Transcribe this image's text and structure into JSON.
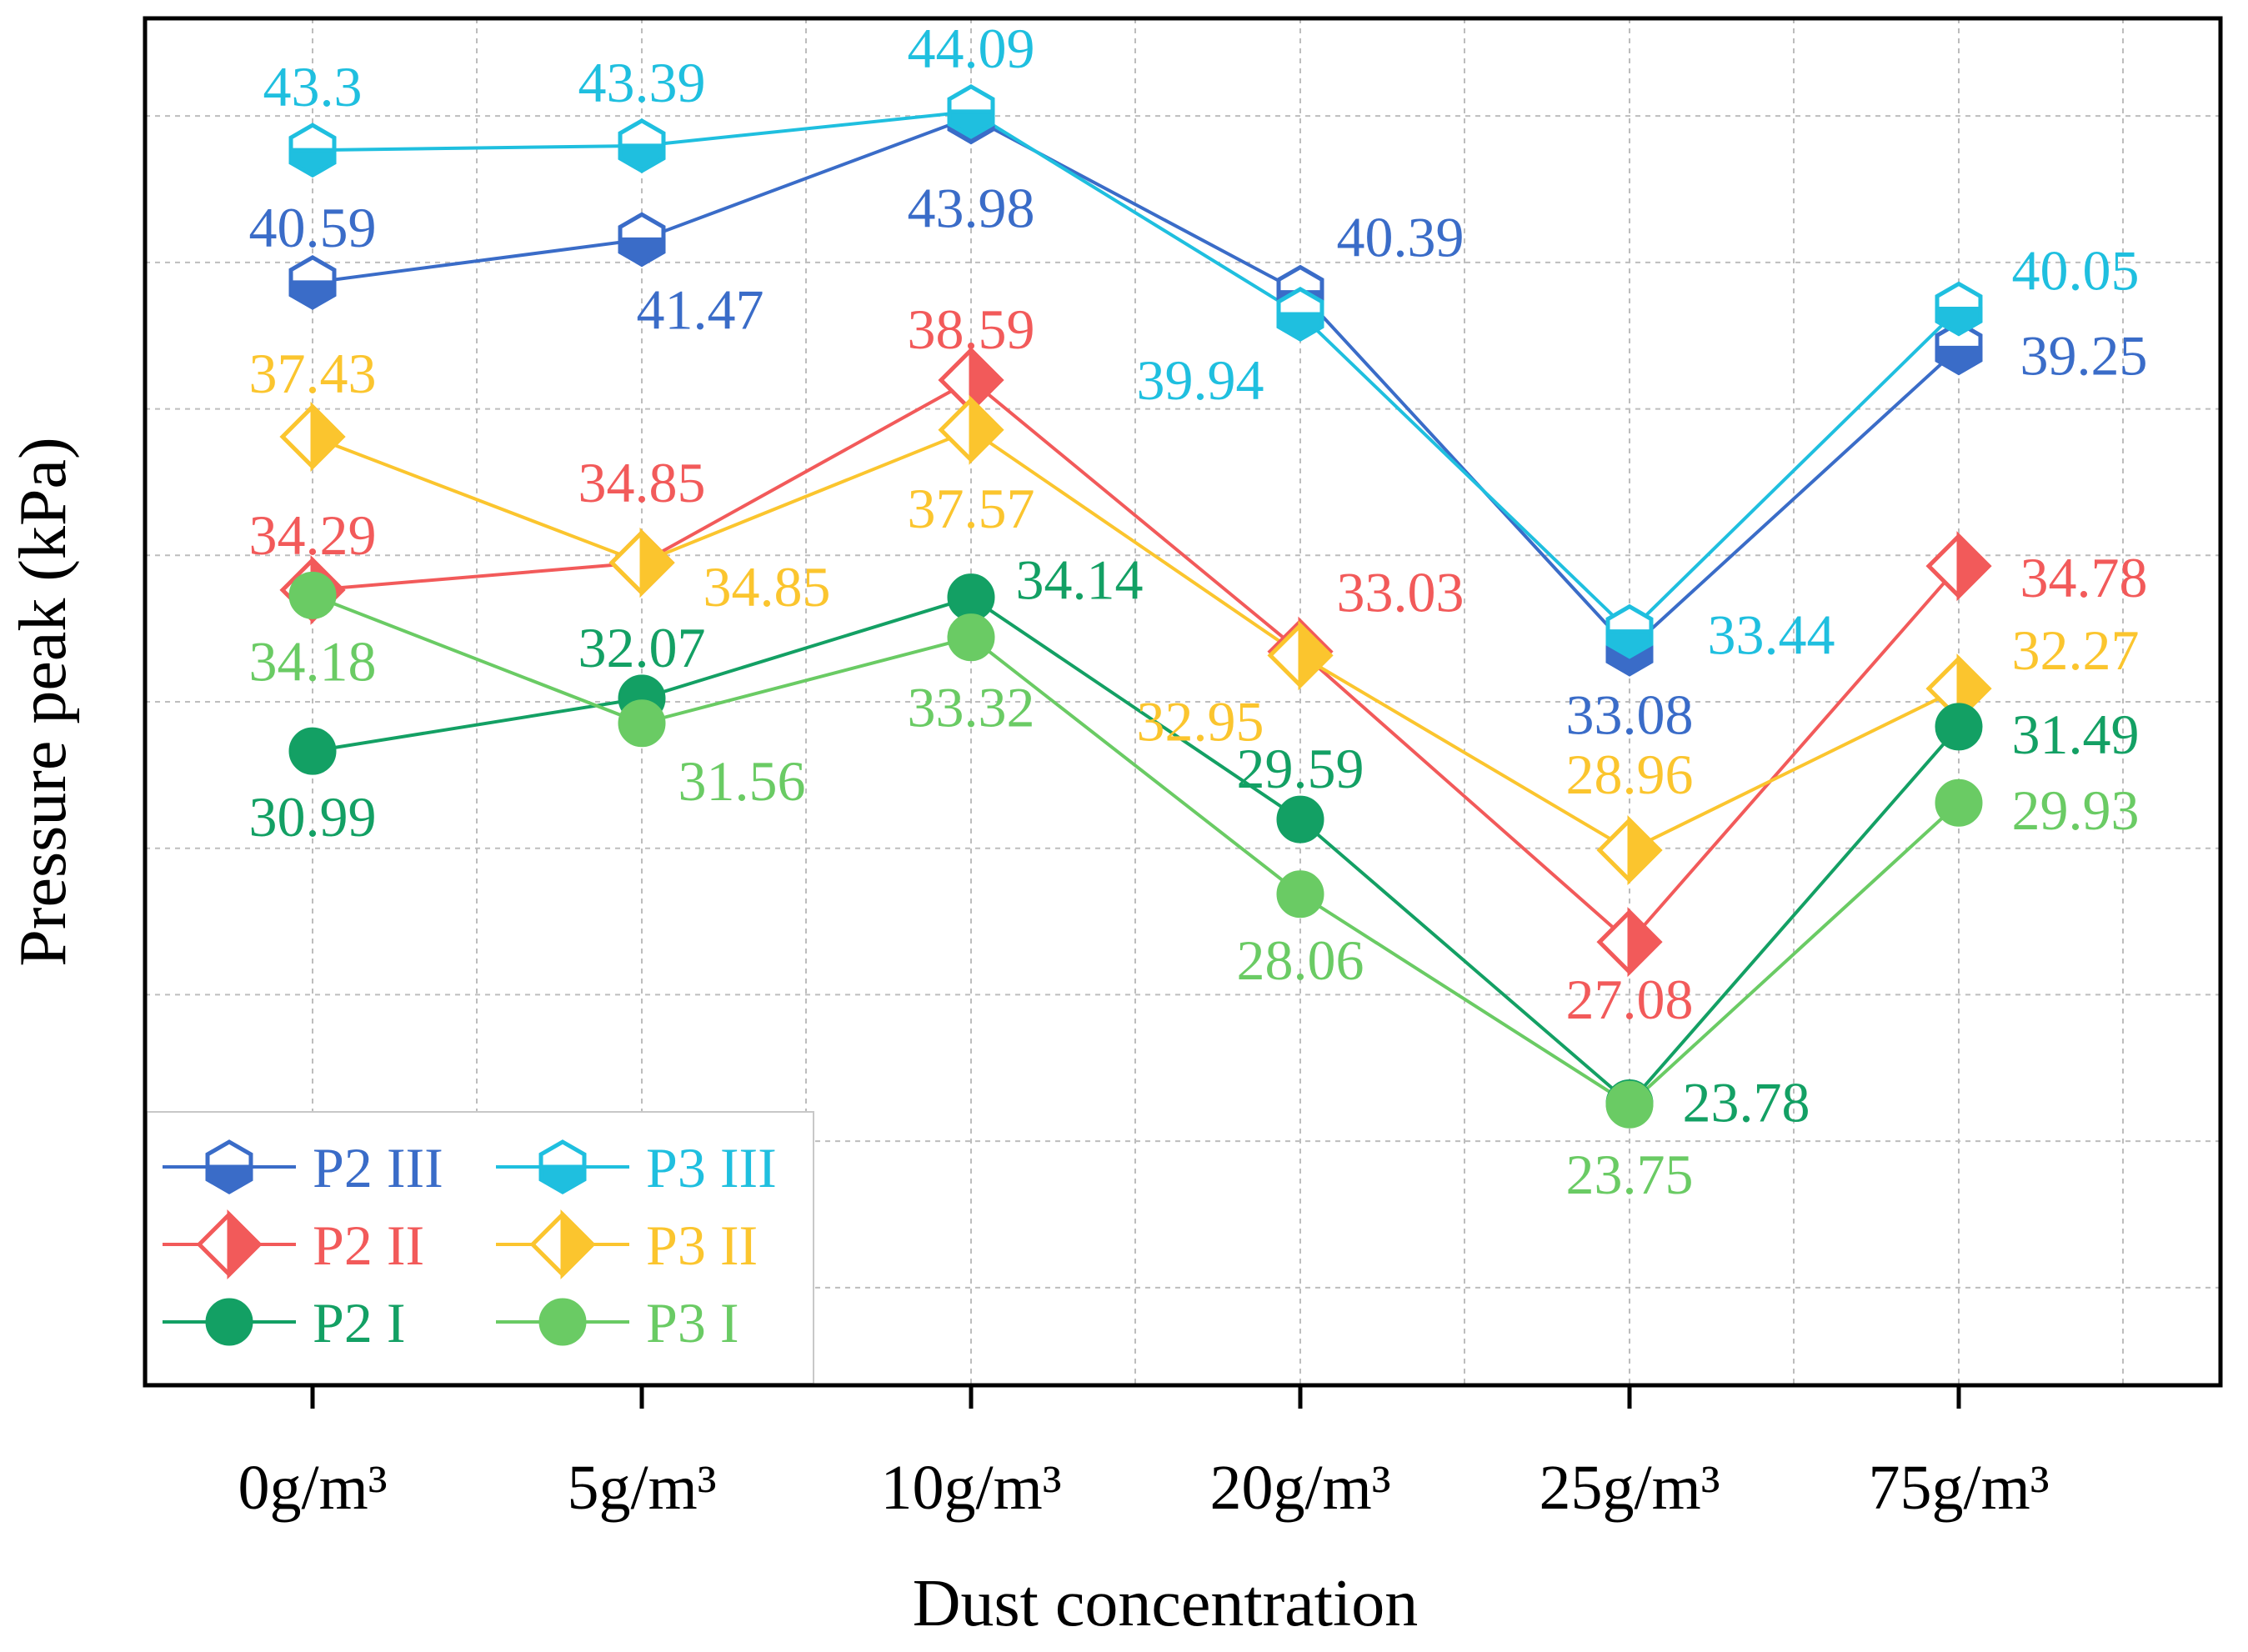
{
  "chart_data": {
    "type": "line",
    "title": "",
    "xlabel": "Dust concentration",
    "ylabel": "Pressure peak (kPa)",
    "categories": [
      "0g/m³",
      "5g/m³",
      "10g/m³",
      "20g/m³",
      "25g/m³",
      "75g/m³"
    ],
    "ylim": [
      18,
      46
    ],
    "grid": true,
    "legend_position": "bottom-left",
    "series": [
      {
        "name": "P2 III",
        "color": "#3A6CC8",
        "marker": "hexagon-half",
        "values": [
          40.59,
          41.47,
          43.98,
          40.39,
          33.08,
          39.25
        ],
        "label_text": [
          "40.59",
          "41.47",
          "43.98",
          "40.39",
          "33.08",
          "39.25"
        ]
      },
      {
        "name": "P3 III",
        "color": "#1FBFDF",
        "marker": "hexagon-half",
        "values": [
          43.3,
          43.39,
          44.09,
          39.94,
          33.44,
          40.05
        ],
        "label_text": [
          "43.3",
          "43.39",
          "44.09",
          "39.94",
          "33.44",
          "40.05"
        ]
      },
      {
        "name": "P2 II",
        "color": "#F25A5A",
        "marker": "diamond-half",
        "values": [
          34.29,
          34.85,
          38.59,
          33.03,
          27.08,
          34.78
        ],
        "label_text": [
          "34.29",
          "34.85",
          "38.59",
          "33.03",
          "27.08",
          "34.78"
        ]
      },
      {
        "name": "P3 II",
        "color": "#FBC52E",
        "marker": "diamond-half",
        "values": [
          37.43,
          34.85,
          37.57,
          32.95,
          28.96,
          32.27
        ],
        "label_text": [
          "37.43",
          "34.85",
          "37.57",
          "32.95",
          "28.96",
          "32.27"
        ]
      },
      {
        "name": "P2 I",
        "color": "#13A064",
        "marker": "circle",
        "values": [
          30.99,
          32.07,
          34.14,
          29.59,
          23.78,
          31.49
        ],
        "label_text": [
          "30.99",
          "32.07",
          "34.14",
          "29.59",
          "23.78",
          "31.49"
        ]
      },
      {
        "name": "P3 I",
        "color": "#6ACB64",
        "marker": "circle",
        "values": [
          34.18,
          31.56,
          33.32,
          28.06,
          23.75,
          29.93
        ],
        "label_text": [
          "34.18",
          "31.56",
          "33.32",
          "28.06",
          "23.75",
          "29.93"
        ]
      }
    ],
    "legend": {
      "rows": [
        [
          "P2 III",
          "P3 III"
        ],
        [
          "P2 II",
          "P3 II"
        ],
        [
          "P2 I",
          "P3 I"
        ]
      ]
    }
  }
}
